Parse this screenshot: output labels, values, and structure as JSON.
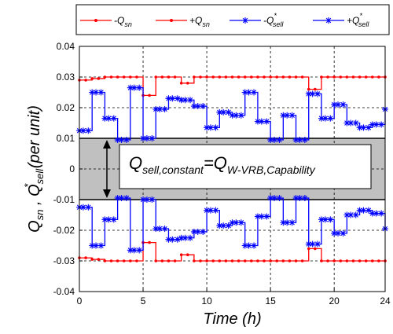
{
  "chart_data": {
    "type": "line",
    "xlabel": "Time (h)",
    "ylabel": "Q_sn , Q*_sell (per unit)",
    "xlim": [
      0,
      24
    ],
    "ylim": [
      -0.04,
      0.04
    ],
    "xticks": [
      0,
      5,
      10,
      15,
      20,
      24
    ],
    "yticks": [
      -0.04,
      -0.03,
      -0.02,
      -0.01,
      0,
      0.01,
      0.02,
      0.03,
      0.04
    ],
    "ytick_labels": [
      "-0.04",
      "-0.03",
      "-0.02",
      "-0.01",
      "0",
      "0.01",
      "0.02",
      "0.03",
      "0.04"
    ],
    "grid": "dashed",
    "legend_position": "top",
    "x": [
      0,
      1,
      2,
      3,
      4,
      5,
      6,
      7,
      8,
      9,
      10,
      11,
      12,
      13,
      14,
      15,
      16,
      17,
      18,
      19,
      20,
      21,
      22,
      23,
      24
    ],
    "series": [
      {
        "name": "-Q_sn",
        "color": "#ff0000",
        "marker": "dot",
        "values": [
          -0.029,
          -0.0295,
          -0.03,
          -0.03,
          -0.03,
          -0.024,
          -0.03,
          -0.03,
          -0.028,
          -0.03,
          -0.03,
          -0.03,
          -0.03,
          -0.03,
          -0.03,
          -0.03,
          -0.03,
          -0.03,
          -0.026,
          -0.03,
          -0.03,
          -0.03,
          -0.03,
          -0.03,
          -0.03
        ]
      },
      {
        "name": "+Q_sn",
        "color": "#ff0000",
        "marker": "dot",
        "values": [
          0.029,
          0.0295,
          0.03,
          0.03,
          0.03,
          0.024,
          0.03,
          0.03,
          0.028,
          0.03,
          0.03,
          0.03,
          0.03,
          0.03,
          0.03,
          0.03,
          0.03,
          0.03,
          0.026,
          0.03,
          0.03,
          0.03,
          0.03,
          0.03,
          0.03
        ]
      },
      {
        "name": "-Q*_sell",
        "color": "#0000ff",
        "marker": "star",
        "values": [
          -0.0125,
          -0.025,
          -0.0165,
          -0.0095,
          -0.0265,
          -0.01,
          -0.0195,
          -0.023,
          -0.0225,
          -0.0205,
          -0.0135,
          -0.0185,
          -0.0175,
          -0.025,
          -0.0155,
          -0.0095,
          -0.0175,
          -0.0095,
          -0.0245,
          -0.0165,
          -0.021,
          -0.015,
          -0.0135,
          -0.0145,
          -0.0195
        ]
      },
      {
        "name": "+Q*_sell",
        "color": "#0000ff",
        "marker": "star",
        "values": [
          0.0125,
          0.025,
          0.0165,
          0.0095,
          0.0265,
          0.01,
          0.0195,
          0.023,
          0.0225,
          0.0205,
          0.0135,
          0.0185,
          0.0175,
          0.025,
          0.0155,
          0.0095,
          0.0175,
          0.0095,
          0.0245,
          0.0165,
          0.021,
          0.015,
          0.0135,
          0.0145,
          0.0195
        ]
      }
    ],
    "band": {
      "range": [
        -0.01,
        0.01
      ],
      "color": "#c0c0c0"
    },
    "annotations": [
      {
        "main": "Q",
        "sub": "sell,constant",
        "eq": "=Q",
        "sub2": "W-VRB,Capability"
      }
    ]
  },
  "legend": {
    "items": [
      {
        "symbol": "Q",
        "sub": "sn",
        "prefix": "-",
        "star": false
      },
      {
        "symbol": "Q",
        "sub": "sn",
        "prefix": "+",
        "star": false
      },
      {
        "symbol": "Q",
        "sub": "sell",
        "prefix": "-",
        "star": true
      },
      {
        "symbol": "Q",
        "sub": "sell",
        "prefix": "+",
        "star": true
      }
    ]
  },
  "axis_titles": {
    "y_q": "Q",
    "y_sub_sn": "sn",
    "y_sep": " , ",
    "y_sub_sell": "sell",
    "y_star": "*",
    "y_unit": " (per unit)"
  },
  "colors": {
    "qsn": "#ff0000",
    "qsell": "#0000ff",
    "band": "#c0c0c0"
  }
}
